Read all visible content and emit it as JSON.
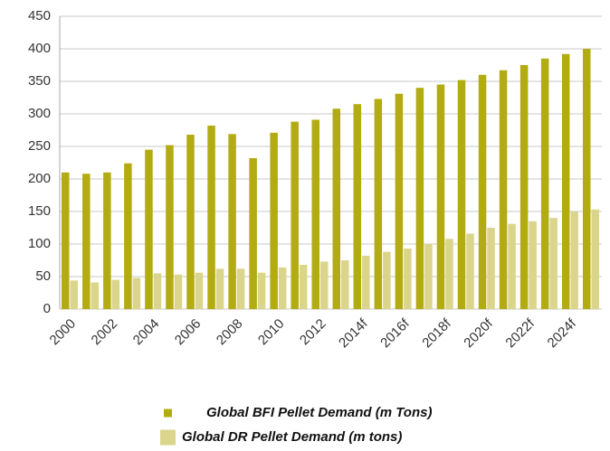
{
  "chart_data": {
    "type": "bar",
    "categories": [
      "2000",
      null,
      "2002",
      null,
      "2004",
      null,
      "2006",
      null,
      "2008",
      null,
      "2010",
      null,
      "2012",
      null,
      "2014f",
      null,
      "2016f",
      null,
      "2018f",
      null,
      "2020f",
      null,
      "2022f",
      null,
      "2024f",
      null
    ],
    "series": [
      {
        "name": "Global BFI Pellet Demand (m Tons)",
        "color": "#b3ab12",
        "values": [
          210,
          208,
          210,
          224,
          245,
          252,
          268,
          282,
          269,
          232,
          271,
          288,
          291,
          308,
          315,
          323,
          331,
          340,
          345,
          352,
          360,
          367,
          375,
          385,
          392,
          400
        ]
      },
      {
        "name": "Global DR Pellet Demand (m tons)",
        "color": "#dbd58c",
        "values": [
          44,
          41,
          45,
          48,
          55,
          53,
          56,
          62,
          62,
          56,
          64,
          68,
          73,
          75,
          82,
          88,
          93,
          100,
          108,
          116,
          125,
          131,
          135,
          140,
          150,
          153
        ]
      }
    ],
    "ylim": [
      0,
      450
    ],
    "yticks": [
      0,
      50,
      100,
      150,
      200,
      250,
      300,
      350,
      400,
      450
    ],
    "grid": true
  }
}
